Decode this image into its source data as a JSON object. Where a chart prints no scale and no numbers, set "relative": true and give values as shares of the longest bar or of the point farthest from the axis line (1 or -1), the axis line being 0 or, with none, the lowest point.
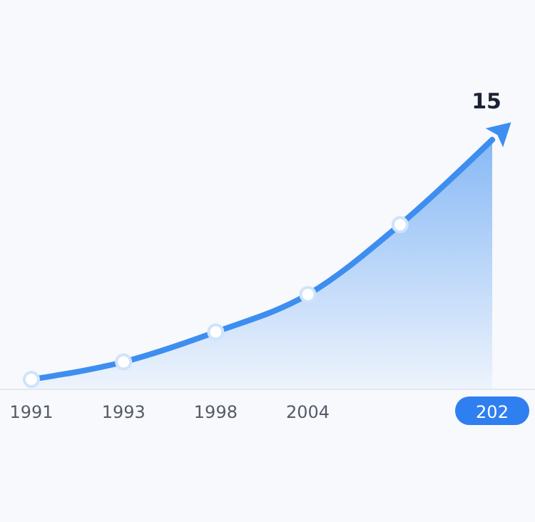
{
  "chart_data": {
    "type": "area",
    "relative": true,
    "categories": [
      "1991",
      "1993",
      "1998",
      "2004",
      null,
      "202"
    ],
    "series": [
      {
        "color": "#3d8ef0",
        "values": [
          0.04,
          0.11,
          0.23,
          0.38,
          0.66,
          1
        ]
      }
    ],
    "annotations": [
      {
        "text": "15",
        "x": "202",
        "y": 1
      }
    ],
    "marker": "circle",
    "line_style": "solid"
  }
}
